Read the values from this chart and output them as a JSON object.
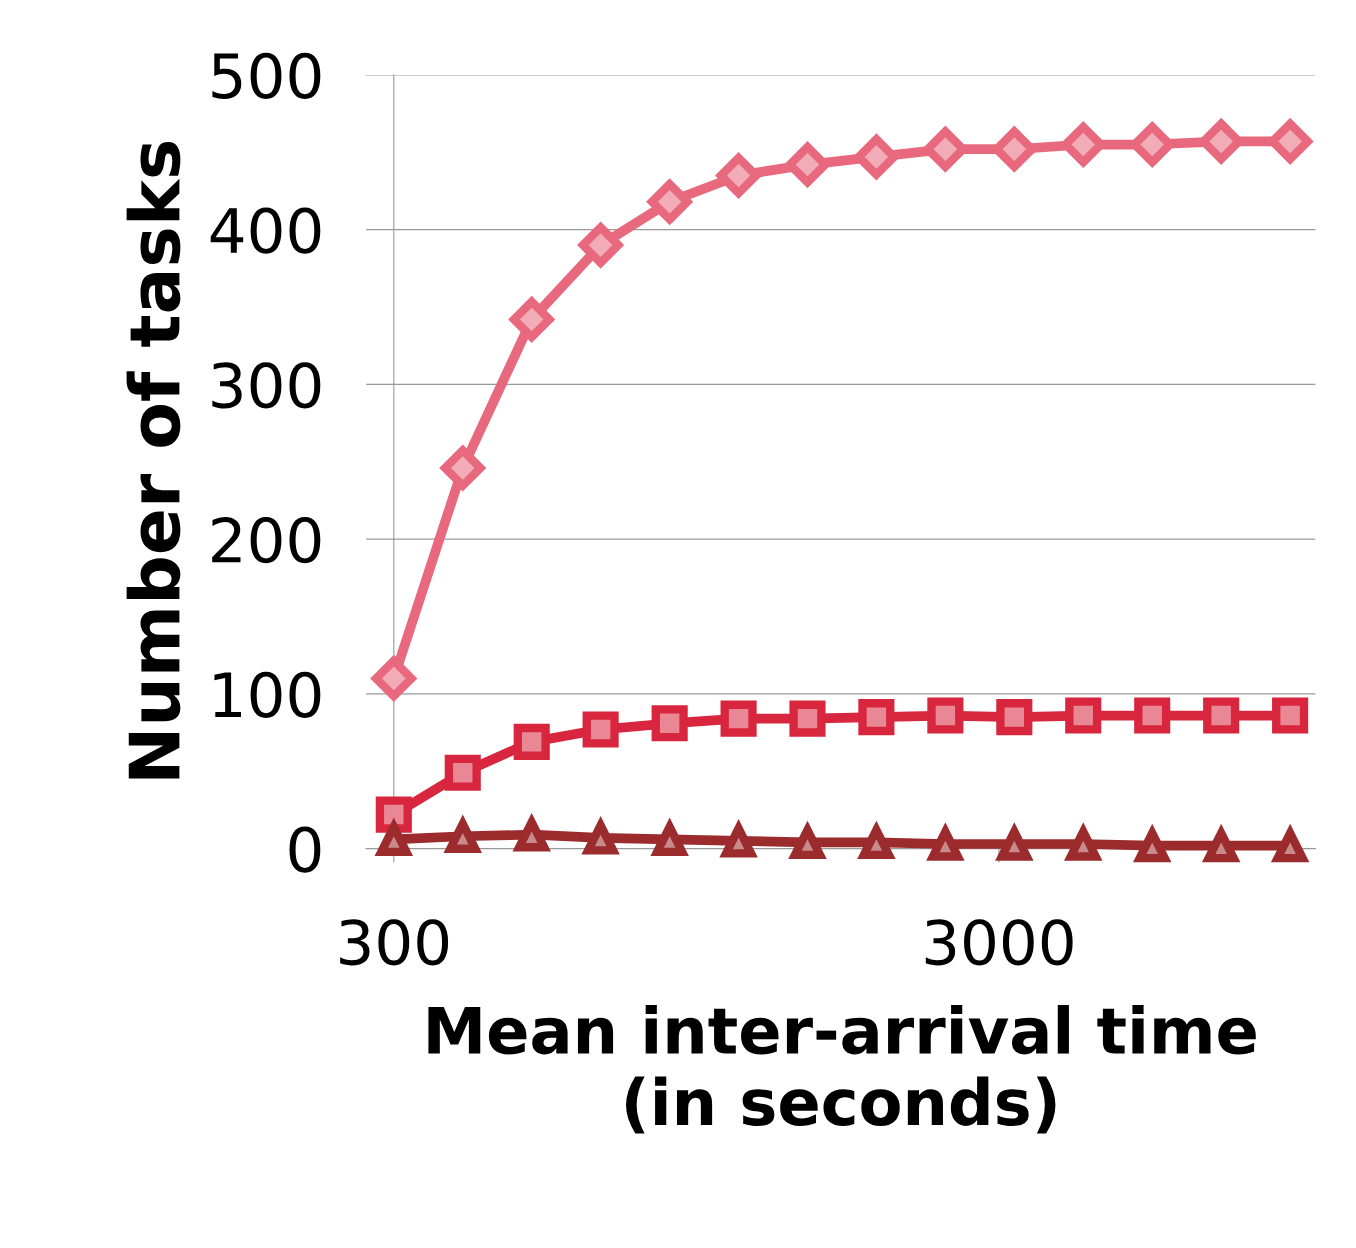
{
  "chart_data": {
    "type": "line",
    "xlabel": "Mean inter-arrival time\n(in seconds)",
    "ylabel": "Number of tasks",
    "log": "x",
    "x": [
      300,
      390,
      507,
      659,
      857,
      1114,
      1448,
      1882,
      2447,
      3181,
      4135,
      5376,
      6989,
      9086
    ],
    "series": [
      {
        "color": "#e8697d",
        "marker": "diamond",
        "values": [
          110,
          246,
          342,
          390,
          418,
          435,
          442,
          447,
          452,
          452,
          455,
          455,
          457,
          457
        ]
      },
      {
        "color": "#d7263d",
        "marker": "square",
        "values": [
          22,
          49,
          69,
          77,
          81,
          84,
          84,
          85,
          86,
          85,
          86,
          86,
          86,
          86
        ]
      },
      {
        "color": "#9c2b2e",
        "marker": "triangle",
        "values": [
          6,
          8,
          9,
          7,
          6,
          5,
          4,
          4,
          3,
          3,
          3,
          2,
          2,
          2
        ]
      }
    ],
    "xlim": [
      270,
      10000
    ],
    "xticks": [
      300,
      3000
    ],
    "ylim": [
      0,
      500
    ],
    "yticks": [
      0,
      100,
      200,
      300,
      400,
      500
    ],
    "grid": "y",
    "line_style": "solid"
  }
}
